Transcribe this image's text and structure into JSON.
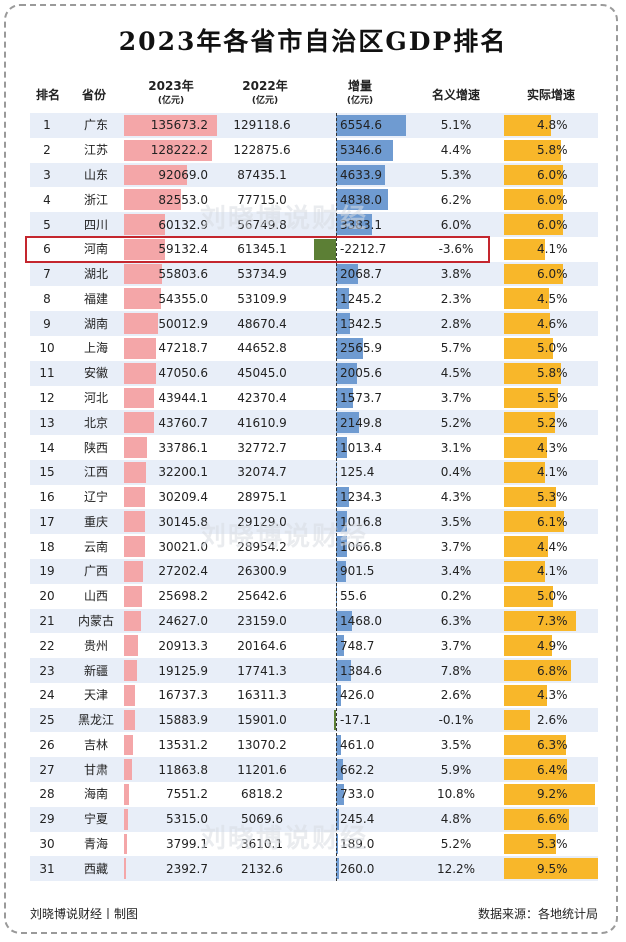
{
  "title": "2023年各省市自治区GDP排名",
  "headers": {
    "rank": "排名",
    "province": "省份",
    "gdp2023": "2023年",
    "gdp2023_unit": "(亿元)",
    "gdp2022": "2022年",
    "gdp2022_unit": "(亿元)",
    "increase": "增量",
    "increase_unit": "(亿元)",
    "nominal": "名义增速",
    "real": "实际增速"
  },
  "watermark": "刘晓博说财经",
  "footer": {
    "left": "刘晓博说财经丨制图",
    "right": "数据来源：各地统计局"
  },
  "colors": {
    "gdp_bar": "#f4a6a8",
    "increase_bar": "#6f9bd1",
    "negative_bar": "#5c7f35",
    "real_bar": "#f8b72a",
    "row_band": "#e8eef8",
    "highlight": "#c4262e"
  },
  "chart_data": {
    "type": "table",
    "title": "2023年各省市自治区GDP排名",
    "columns": [
      "排名",
      "省份",
      "2023年(亿元)",
      "2022年(亿元)",
      "增量(亿元)",
      "名义增速",
      "实际增速"
    ],
    "highlight_rank": 6,
    "rows": [
      {
        "rank": "1",
        "province": "广东",
        "gdp2023": "135673.2",
        "gdp2022": "129118.6",
        "increase": "6554.6",
        "nominal": "5.1%",
        "real": "4.8%"
      },
      {
        "rank": "2",
        "province": "江苏",
        "gdp2023": "128222.2",
        "gdp2022": "122875.6",
        "increase": "5346.6",
        "nominal": "4.4%",
        "real": "5.8%"
      },
      {
        "rank": "3",
        "province": "山东",
        "gdp2023": "92069.0",
        "gdp2022": "87435.1",
        "increase": "4633.9",
        "nominal": "5.3%",
        "real": "6.0%"
      },
      {
        "rank": "4",
        "province": "浙江",
        "gdp2023": "82553.0",
        "gdp2022": "77715.0",
        "increase": "4838.0",
        "nominal": "6.2%",
        "real": "6.0%"
      },
      {
        "rank": "5",
        "province": "四川",
        "gdp2023": "60132.9",
        "gdp2022": "56749.8",
        "increase": "3383.1",
        "nominal": "6.0%",
        "real": "6.0%"
      },
      {
        "rank": "6",
        "province": "河南",
        "gdp2023": "59132.4",
        "gdp2022": "61345.1",
        "increase": "-2212.7",
        "nominal": "-3.6%",
        "real": "4.1%"
      },
      {
        "rank": "7",
        "province": "湖北",
        "gdp2023": "55803.6",
        "gdp2022": "53734.9",
        "increase": "2068.7",
        "nominal": "3.8%",
        "real": "6.0%"
      },
      {
        "rank": "8",
        "province": "福建",
        "gdp2023": "54355.0",
        "gdp2022": "53109.9",
        "increase": "1245.2",
        "nominal": "2.3%",
        "real": "4.5%"
      },
      {
        "rank": "9",
        "province": "湖南",
        "gdp2023": "50012.9",
        "gdp2022": "48670.4",
        "increase": "1342.5",
        "nominal": "2.8%",
        "real": "4.6%"
      },
      {
        "rank": "10",
        "province": "上海",
        "gdp2023": "47218.7",
        "gdp2022": "44652.8",
        "increase": "2565.9",
        "nominal": "5.7%",
        "real": "5.0%"
      },
      {
        "rank": "11",
        "province": "安徽",
        "gdp2023": "47050.6",
        "gdp2022": "45045.0",
        "increase": "2005.6",
        "nominal": "4.5%",
        "real": "5.8%"
      },
      {
        "rank": "12",
        "province": "河北",
        "gdp2023": "43944.1",
        "gdp2022": "42370.4",
        "increase": "1573.7",
        "nominal": "3.7%",
        "real": "5.5%"
      },
      {
        "rank": "13",
        "province": "北京",
        "gdp2023": "43760.7",
        "gdp2022": "41610.9",
        "increase": "2149.8",
        "nominal": "5.2%",
        "real": "5.2%"
      },
      {
        "rank": "14",
        "province": "陕西",
        "gdp2023": "33786.1",
        "gdp2022": "32772.7",
        "increase": "1013.4",
        "nominal": "3.1%",
        "real": "4.3%"
      },
      {
        "rank": "15",
        "province": "江西",
        "gdp2023": "32200.1",
        "gdp2022": "32074.7",
        "increase": "125.4",
        "nominal": "0.4%",
        "real": "4.1%"
      },
      {
        "rank": "16",
        "province": "辽宁",
        "gdp2023": "30209.4",
        "gdp2022": "28975.1",
        "increase": "1234.3",
        "nominal": "4.3%",
        "real": "5.3%"
      },
      {
        "rank": "17",
        "province": "重庆",
        "gdp2023": "30145.8",
        "gdp2022": "29129.0",
        "increase": "1016.8",
        "nominal": "3.5%",
        "real": "6.1%"
      },
      {
        "rank": "18",
        "province": "云南",
        "gdp2023": "30021.0",
        "gdp2022": "28954.2",
        "increase": "1066.8",
        "nominal": "3.7%",
        "real": "4.4%"
      },
      {
        "rank": "19",
        "province": "广西",
        "gdp2023": "27202.4",
        "gdp2022": "26300.9",
        "increase": "901.5",
        "nominal": "3.4%",
        "real": "4.1%"
      },
      {
        "rank": "20",
        "province": "山西",
        "gdp2023": "25698.2",
        "gdp2022": "25642.6",
        "increase": "55.6",
        "nominal": "0.2%",
        "real": "5.0%"
      },
      {
        "rank": "21",
        "province": "内蒙古",
        "gdp2023": "24627.0",
        "gdp2022": "23159.0",
        "increase": "1468.0",
        "nominal": "6.3%",
        "real": "7.3%"
      },
      {
        "rank": "22",
        "province": "贵州",
        "gdp2023": "20913.3",
        "gdp2022": "20164.6",
        "increase": "748.7",
        "nominal": "3.7%",
        "real": "4.9%"
      },
      {
        "rank": "23",
        "province": "新疆",
        "gdp2023": "19125.9",
        "gdp2022": "17741.3",
        "increase": "1384.6",
        "nominal": "7.8%",
        "real": "6.8%"
      },
      {
        "rank": "24",
        "province": "天津",
        "gdp2023": "16737.3",
        "gdp2022": "16311.3",
        "increase": "426.0",
        "nominal": "2.6%",
        "real": "4.3%"
      },
      {
        "rank": "25",
        "province": "黑龙江",
        "gdp2023": "15883.9",
        "gdp2022": "15901.0",
        "increase": "-17.1",
        "nominal": "-0.1%",
        "real": "2.6%"
      },
      {
        "rank": "26",
        "province": "吉林",
        "gdp2023": "13531.2",
        "gdp2022": "13070.2",
        "increase": "461.0",
        "nominal": "3.5%",
        "real": "6.3%"
      },
      {
        "rank": "27",
        "province": "甘肃",
        "gdp2023": "11863.8",
        "gdp2022": "11201.6",
        "increase": "662.2",
        "nominal": "5.9%",
        "real": "6.4%"
      },
      {
        "rank": "28",
        "province": "海南",
        "gdp2023": "7551.2",
        "gdp2022": "6818.2",
        "increase": "733.0",
        "nominal": "10.8%",
        "real": "9.2%"
      },
      {
        "rank": "29",
        "province": "宁夏",
        "gdp2023": "5315.0",
        "gdp2022": "5069.6",
        "increase": "245.4",
        "nominal": "4.8%",
        "real": "6.6%"
      },
      {
        "rank": "30",
        "province": "青海",
        "gdp2023": "3799.1",
        "gdp2022": "3610.1",
        "increase": "189.0",
        "nominal": "5.2%",
        "real": "5.3%"
      },
      {
        "rank": "31",
        "province": "西藏",
        "gdp2023": "2392.7",
        "gdp2022": "2132.6",
        "increase": "260.0",
        "nominal": "12.2%",
        "real": "9.5%"
      }
    ]
  }
}
